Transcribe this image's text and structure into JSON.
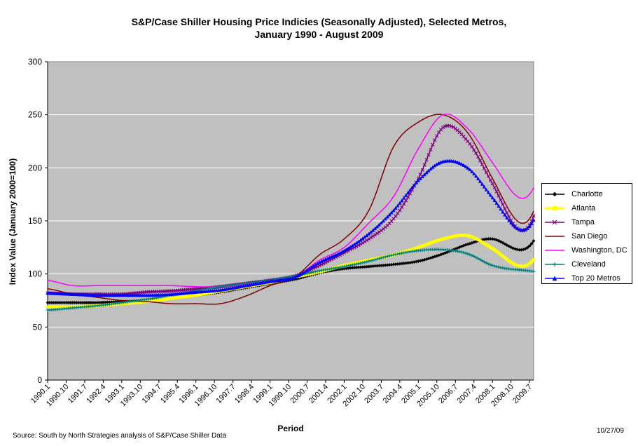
{
  "chart_data": {
    "type": "line",
    "title": "S&P/Case Shiller Housing Price Indicies (Seasonally Adjusted), Selected Metros,",
    "subtitle": "January 1990 - August 2009",
    "xlabel": "Period",
    "ylabel": "Index Value (January 2000=100)",
    "ylim": [
      0,
      300
    ],
    "yticks": [
      "0",
      "50",
      "100",
      "150",
      "200",
      "250",
      "300"
    ],
    "xticks": [
      "1990.1",
      "1990.10",
      "1991.7",
      "1992.4",
      "1993.1",
      "1993.10",
      "1994.7",
      "1995.4",
      "1996.1",
      "1996.10",
      "1997.7",
      "1998.4",
      "1999.1",
      "1999.10",
      "2000.7",
      "2001.4",
      "2002.1",
      "2002.10",
      "2003.7",
      "2004.4",
      "2005.1",
      "2005.10",
      "2006.7",
      "2007.4",
      "2008.1",
      "2008.10",
      "2009.7"
    ],
    "x_years": [
      1990,
      1991,
      1992,
      1993,
      1994,
      1995,
      1996,
      1997,
      1998,
      1999,
      2000,
      2001,
      2002,
      2003,
      2004,
      2005,
      2006,
      2007,
      2008,
      2009
    ],
    "background": "#c0c0c0",
    "grid": true,
    "legend_position": "right",
    "series": [
      {
        "name": "Charlotte",
        "color": "#000000",
        "marker": "diamond",
        "values": [
          73,
          73,
          73,
          74,
          75,
          77,
          80,
          83,
          87,
          91,
          95,
          101,
          105,
          107,
          109,
          112,
          119,
          128,
          133,
          123
        ]
      },
      {
        "name": "Atlanta",
        "color": "#ffff00",
        "marker": "square",
        "values": [
          69,
          69,
          70,
          72,
          74,
          77,
          80,
          84,
          88,
          92,
          97,
          102,
          108,
          113,
          118,
          125,
          133,
          136,
          124,
          108
        ]
      },
      {
        "name": "Tampa",
        "color": "#800080",
        "marker": "cross",
        "values": [
          82,
          81,
          81,
          81,
          83,
          84,
          86,
          88,
          91,
          94,
          98,
          108,
          120,
          133,
          152,
          190,
          238,
          225,
          185,
          143
        ]
      },
      {
        "name": "San Diego",
        "color": "#800000",
        "marker": "none",
        "values": [
          86,
          81,
          78,
          75,
          74,
          72,
          72,
          72,
          79,
          89,
          97,
          118,
          133,
          160,
          220,
          243,
          250,
          233,
          190,
          150
        ]
      },
      {
        "name": "Washington, DC",
        "color": "#ff00ff",
        "marker": "none",
        "values": [
          94,
          89,
          89,
          89,
          89,
          89,
          88,
          88,
          90,
          93,
          97,
          113,
          125,
          148,
          173,
          218,
          250,
          237,
          205,
          173
        ]
      },
      {
        "name": "Cleveland",
        "color": "#008080",
        "marker": "plus",
        "values": [
          66,
          68,
          70,
          73,
          76,
          80,
          84,
          88,
          91,
          94,
          98,
          103,
          107,
          112,
          118,
          122,
          123,
          119,
          108,
          104
        ]
      },
      {
        "name": "Top 20 Metros",
        "color": "#0000ff",
        "marker": "triangle",
        "values": [
          82,
          81,
          80,
          80,
          80,
          81,
          83,
          85,
          89,
          93,
          97,
          111,
          122,
          138,
          160,
          188,
          206,
          200,
          172,
          143
        ]
      }
    ]
  },
  "footer": {
    "source": "Source: South by North Strategies analysis of S&P/Case Shiller Data",
    "date": "10/27/09"
  }
}
